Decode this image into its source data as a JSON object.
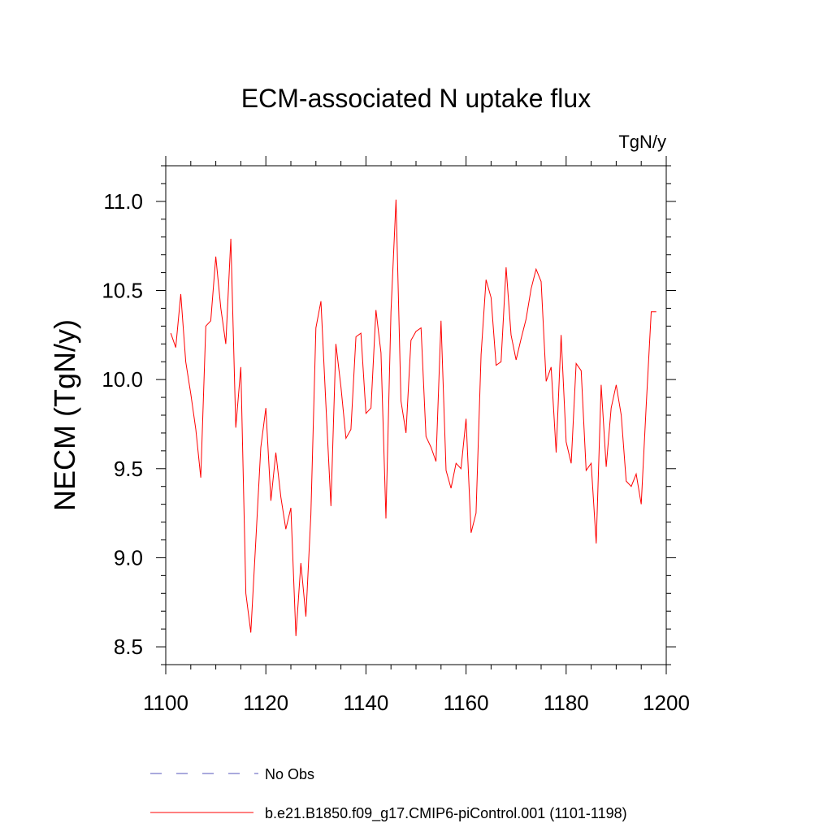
{
  "chart_data": {
    "type": "line",
    "title": "ECM-associated N uptake flux",
    "units": "TgN/y",
    "xlabel": "",
    "ylabel": "NECM  (TgN/y)",
    "xlim": [
      1100,
      1200
    ],
    "ylim": [
      8.4,
      11.2
    ],
    "x_ticks": [
      1100,
      1120,
      1140,
      1160,
      1180,
      1200
    ],
    "x_tick_labels": [
      "1100",
      "1120",
      "1140",
      "1160",
      "1180",
      "1200"
    ],
    "y_ticks": [
      8.5,
      9.0,
      9.5,
      10.0,
      10.5,
      11.0
    ],
    "y_tick_labels": [
      "8.5",
      "9.0",
      "9.5",
      "10.0",
      "10.5",
      "11.0"
    ],
    "grid": false,
    "legend_position": "bottom-left",
    "series": [
      {
        "name": "No Obs",
        "color": "#5555bb",
        "dash": "dashed",
        "x": [],
        "values": []
      },
      {
        "name": "b.e21.B1850.f09_g17.CMIP6-piControl.001 (1101-1198)",
        "color": "#ff0000",
        "dash": "solid",
        "x": [
          1101,
          1102,
          1103,
          1104,
          1105,
          1106,
          1107,
          1108,
          1109,
          1110,
          1111,
          1112,
          1113,
          1114,
          1115,
          1116,
          1117,
          1118,
          1119,
          1120,
          1121,
          1122,
          1123,
          1124,
          1125,
          1126,
          1127,
          1128,
          1129,
          1130,
          1131,
          1132,
          1133,
          1134,
          1135,
          1136,
          1137,
          1138,
          1139,
          1140,
          1141,
          1142,
          1143,
          1144,
          1145,
          1146,
          1147,
          1148,
          1149,
          1150,
          1151,
          1152,
          1153,
          1154,
          1155,
          1156,
          1157,
          1158,
          1159,
          1160,
          1161,
          1162,
          1163,
          1164,
          1165,
          1166,
          1167,
          1168,
          1169,
          1170,
          1171,
          1172,
          1173,
          1174,
          1175,
          1176,
          1177,
          1178,
          1179,
          1180,
          1181,
          1182,
          1183,
          1184,
          1185,
          1186,
          1187,
          1188,
          1189,
          1190,
          1191,
          1192,
          1193,
          1194,
          1195,
          1196,
          1197,
          1198
        ],
        "values": [
          10.26,
          10.18,
          10.48,
          10.1,
          9.92,
          9.72,
          9.45,
          10.3,
          10.33,
          10.69,
          10.4,
          10.2,
          10.79,
          9.73,
          10.07,
          8.8,
          8.58,
          9.1,
          9.62,
          9.84,
          9.32,
          9.59,
          9.34,
          9.16,
          9.28,
          8.56,
          8.97,
          8.67,
          9.24,
          10.29,
          10.44,
          9.86,
          9.29,
          10.2,
          9.96,
          9.67,
          9.72,
          10.24,
          10.26,
          9.81,
          9.84,
          10.39,
          10.15,
          9.22,
          10.38,
          11.01,
          9.88,
          9.7,
          10.22,
          10.27,
          10.29,
          9.68,
          9.62,
          9.54,
          10.33,
          9.49,
          9.39,
          9.53,
          9.5,
          9.78,
          9.14,
          9.25,
          10.14,
          10.56,
          10.46,
          10.08,
          10.1,
          10.63,
          10.25,
          10.11,
          10.23,
          10.34,
          10.51,
          10.62,
          10.55,
          9.99,
          10.07,
          9.59,
          10.25,
          9.65,
          9.53,
          10.09,
          10.05,
          9.49,
          9.53,
          9.08,
          9.97,
          9.51,
          9.84,
          9.97,
          9.8,
          9.43,
          9.4,
          9.47,
          9.3,
          9.86,
          10.38,
          10.38
        ]
      }
    ]
  }
}
